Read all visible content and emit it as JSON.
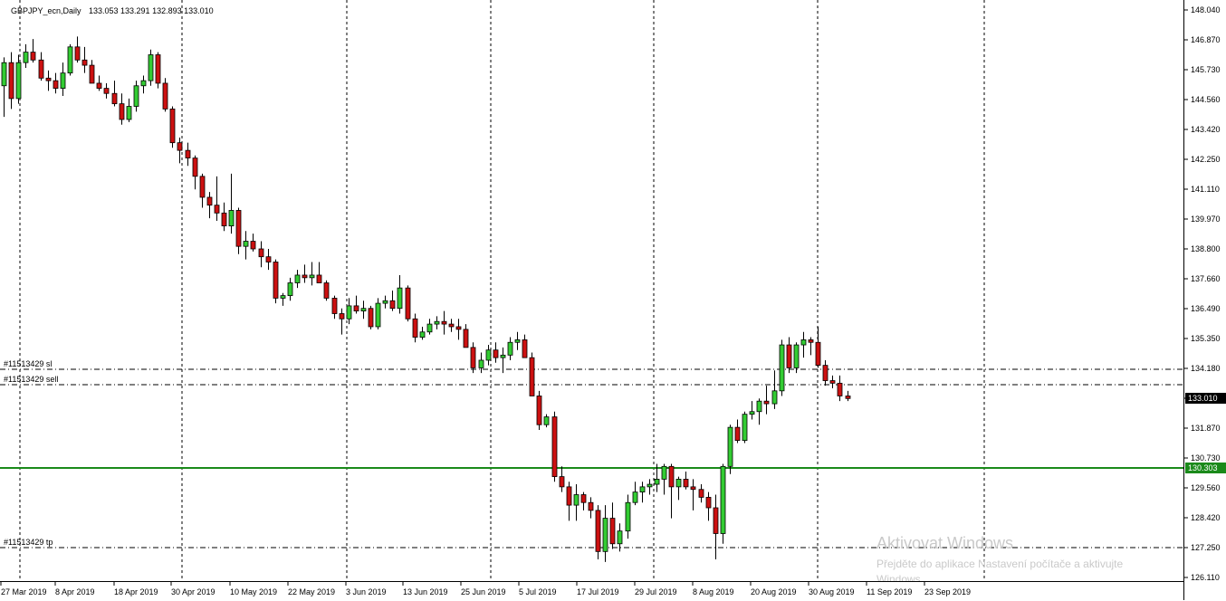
{
  "header": {
    "symbol": "GBPJPY_ecn,Daily",
    "ohlc": "133.053 133.291 132.893 133.010"
  },
  "watermark": {
    "line1": "Aktivovat Windows",
    "line2": "Přejděte do aplikace Nastavení počítače a aktivujte",
    "line3": "Windows."
  },
  "colors": {
    "bull": "#33cc33",
    "bear": "#cc1111",
    "outline": "#000000",
    "grid": "#000000",
    "level": "#1a8a1a",
    "price_tag_bg": "#000000",
    "level_tag_bg": "#1a8a1a"
  },
  "chart_data": {
    "type": "candlestick",
    "symbol": "GBPJPY_ecn",
    "timeframe": "Daily",
    "y_ticks": [
      "148.040",
      "146.870",
      "145.730",
      "144.560",
      "143.420",
      "142.250",
      "141.110",
      "139.970",
      "138.800",
      "137.660",
      "136.490",
      "135.350",
      "134.180",
      "133.010",
      "131.870",
      "130.730",
      "129.560",
      "128.420",
      "127.250",
      "126.110"
    ],
    "x_ticks": [
      "27 Mar 2019",
      "8 Apr 2019",
      "18 Apr 2019",
      "30 Apr 2019",
      "10 May 2019",
      "22 May 2019",
      "3 Jun 2019",
      "13 Jun 2019",
      "25 Jun 2019",
      "5 Jul 2019",
      "17 Jul 2019",
      "29 Jul 2019",
      "8 Aug 2019",
      "20 Aug 2019",
      "30 Aug 2019",
      "11 Sep 2019",
      "23 Sep 2019"
    ],
    "current_price": "133.010",
    "level_price": "130.303",
    "ylim": [
      126.0,
      148.2
    ],
    "orders": [
      {
        "label": "#11513429 sl",
        "price": 134.18
      },
      {
        "label": "#11513429 sell",
        "price": 133.59
      },
      {
        "label": "#11513429 tp",
        "price": 127.25
      }
    ],
    "candles": [
      [
        145.1,
        146.2,
        143.9,
        146.0
      ],
      [
        146.0,
        146.4,
        144.2,
        144.6
      ],
      [
        144.6,
        146.3,
        144.4,
        146.0
      ],
      [
        146.0,
        146.7,
        145.8,
        146.4
      ],
      [
        146.4,
        146.9,
        146.0,
        146.1
      ],
      [
        146.1,
        146.4,
        145.3,
        145.4
      ],
      [
        145.4,
        145.7,
        144.9,
        145.3
      ],
      [
        145.3,
        145.6,
        144.8,
        145.0
      ],
      [
        145.0,
        146.0,
        144.7,
        145.6
      ],
      [
        145.6,
        146.7,
        145.5,
        146.6
      ],
      [
        146.6,
        147.0,
        146.0,
        146.1
      ],
      [
        146.1,
        146.6,
        145.6,
        145.9
      ],
      [
        145.9,
        146.1,
        145.2,
        145.2
      ],
      [
        145.2,
        145.5,
        144.9,
        145.0
      ],
      [
        145.0,
        145.2,
        144.6,
        144.8
      ],
      [
        144.8,
        145.3,
        144.3,
        144.4
      ],
      [
        144.4,
        144.8,
        143.6,
        143.8
      ],
      [
        143.8,
        144.6,
        143.7,
        144.3
      ],
      [
        144.3,
        145.3,
        144.1,
        145.1
      ],
      [
        145.1,
        145.5,
        144.8,
        145.3
      ],
      [
        145.3,
        146.5,
        145.1,
        146.3
      ],
      [
        146.3,
        146.4,
        145.0,
        145.2
      ],
      [
        145.2,
        145.4,
        144.1,
        144.2
      ],
      [
        144.2,
        144.3,
        142.7,
        142.9
      ],
      [
        142.9,
        143.1,
        142.1,
        142.6
      ],
      [
        142.6,
        142.9,
        142.0,
        142.3
      ],
      [
        142.3,
        142.4,
        141.1,
        141.6
      ],
      [
        141.6,
        141.7,
        140.4,
        140.8
      ],
      [
        140.8,
        141.0,
        140.0,
        140.5
      ],
      [
        140.5,
        141.6,
        139.9,
        140.2
      ],
      [
        140.2,
        140.6,
        139.5,
        139.7
      ],
      [
        139.7,
        141.7,
        139.4,
        140.3
      ],
      [
        140.3,
        140.4,
        138.6,
        138.9
      ],
      [
        138.9,
        139.5,
        138.4,
        139.1
      ],
      [
        139.1,
        139.4,
        138.7,
        138.8
      ],
      [
        138.8,
        139.1,
        138.1,
        138.5
      ],
      [
        138.5,
        138.8,
        138.0,
        138.3
      ],
      [
        138.3,
        138.4,
        136.7,
        136.9
      ],
      [
        136.9,
        137.1,
        136.6,
        137.0
      ],
      [
        137.0,
        137.7,
        136.8,
        137.5
      ],
      [
        137.5,
        138.0,
        137.3,
        137.8
      ],
      [
        137.8,
        138.2,
        137.5,
        137.7
      ],
      [
        137.7,
        138.3,
        137.4,
        137.8
      ],
      [
        137.8,
        138.3,
        137.5,
        137.5
      ],
      [
        137.5,
        137.6,
        136.8,
        136.9
      ],
      [
        136.9,
        137.0,
        136.1,
        136.3
      ],
      [
        136.3,
        136.5,
        135.5,
        136.1
      ],
      [
        136.1,
        136.9,
        135.9,
        136.6
      ],
      [
        136.6,
        137.0,
        136.3,
        136.4
      ],
      [
        136.4,
        136.8,
        136.1,
        136.5
      ],
      [
        136.5,
        136.6,
        135.7,
        135.8
      ],
      [
        135.8,
        136.9,
        135.7,
        136.7
      ],
      [
        136.7,
        137.0,
        136.5,
        136.8
      ],
      [
        136.8,
        137.2,
        136.4,
        136.5
      ],
      [
        136.5,
        137.8,
        136.3,
        137.3
      ],
      [
        137.3,
        137.4,
        136.0,
        136.1
      ],
      [
        136.1,
        136.3,
        135.2,
        135.4
      ],
      [
        135.4,
        135.8,
        135.3,
        135.6
      ],
      [
        135.6,
        136.1,
        135.5,
        135.9
      ],
      [
        135.9,
        136.2,
        135.7,
        136.0
      ],
      [
        136.0,
        136.4,
        135.5,
        135.9
      ],
      [
        135.9,
        136.1,
        135.6,
        135.8
      ],
      [
        135.8,
        136.1,
        135.3,
        135.7
      ],
      [
        135.7,
        135.9,
        135.0,
        135.0
      ],
      [
        135.0,
        135.2,
        134.0,
        134.2
      ],
      [
        134.2,
        134.8,
        134.0,
        134.5
      ],
      [
        134.5,
        135.1,
        134.3,
        134.9
      ],
      [
        134.9,
        135.2,
        134.4,
        134.6
      ],
      [
        134.6,
        135.0,
        134.0,
        134.7
      ],
      [
        134.7,
        135.4,
        134.5,
        135.2
      ],
      [
        135.2,
        135.6,
        134.9,
        135.3
      ],
      [
        135.3,
        135.5,
        134.6,
        134.6
      ],
      [
        134.6,
        134.8,
        133.1,
        133.1
      ],
      [
        133.1,
        133.3,
        131.8,
        132.0
      ],
      [
        132.0,
        132.4,
        131.9,
        132.3
      ],
      [
        132.3,
        132.5,
        129.8,
        130.0
      ],
      [
        130.0,
        130.4,
        129.4,
        129.6
      ],
      [
        129.6,
        129.8,
        128.3,
        128.9
      ],
      [
        128.9,
        129.7,
        128.3,
        129.3
      ],
      [
        129.3,
        129.4,
        128.7,
        129.0
      ],
      [
        129.0,
        129.2,
        128.4,
        128.7
      ],
      [
        128.7,
        128.9,
        126.8,
        127.1
      ],
      [
        127.1,
        128.9,
        126.7,
        128.4
      ],
      [
        128.4,
        129.0,
        127.2,
        127.4
      ],
      [
        127.4,
        128.2,
        127.1,
        127.9
      ],
      [
        127.9,
        129.3,
        127.6,
        129.0
      ],
      [
        129.0,
        129.8,
        128.9,
        129.4
      ],
      [
        129.4,
        129.8,
        129.0,
        129.6
      ],
      [
        129.6,
        129.9,
        129.3,
        129.7
      ],
      [
        129.7,
        130.5,
        129.4,
        129.9
      ],
      [
        129.9,
        130.5,
        129.3,
        130.4
      ],
      [
        130.4,
        130.5,
        128.4,
        129.6
      ],
      [
        129.6,
        130.0,
        129.1,
        129.9
      ],
      [
        129.9,
        130.2,
        129.5,
        129.6
      ],
      [
        129.6,
        129.9,
        128.7,
        129.5
      ],
      [
        129.5,
        129.7,
        129.0,
        129.2
      ],
      [
        129.2,
        129.4,
        128.3,
        128.8
      ],
      [
        128.8,
        129.3,
        126.8,
        127.8
      ],
      [
        127.8,
        130.5,
        127.4,
        130.4
      ],
      [
        130.4,
        132.0,
        130.1,
        131.9
      ],
      [
        131.9,
        132.2,
        131.3,
        131.4
      ],
      [
        131.4,
        132.5,
        131.3,
        132.4
      ],
      [
        132.4,
        132.9,
        132.2,
        132.5
      ],
      [
        132.5,
        133.0,
        132.0,
        132.9
      ],
      [
        132.9,
        133.5,
        132.4,
        132.8
      ],
      [
        132.8,
        134.1,
        132.6,
        133.3
      ],
      [
        133.3,
        135.3,
        133.1,
        135.1
      ],
      [
        135.1,
        135.4,
        134.0,
        134.2
      ],
      [
        134.2,
        135.2,
        134.0,
        135.1
      ],
      [
        135.1,
        135.6,
        134.6,
        135.3
      ],
      [
        135.3,
        135.4,
        134.7,
        135.2
      ],
      [
        135.2,
        135.8,
        134.2,
        134.3
      ],
      [
        134.3,
        134.5,
        133.5,
        133.7
      ],
      [
        133.7,
        133.9,
        133.4,
        133.6
      ],
      [
        133.6,
        133.9,
        132.9,
        133.1
      ],
      [
        133.1,
        133.3,
        132.9,
        133.0
      ]
    ]
  }
}
